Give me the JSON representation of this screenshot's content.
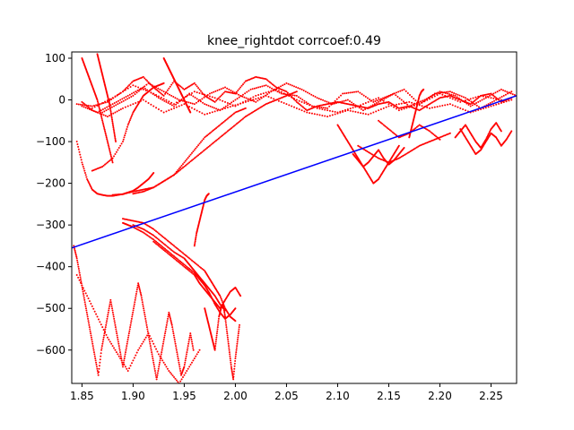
{
  "chart_data": {
    "type": "scatter",
    "title": "knee_rightdot corrcoef:0.49",
    "xlabel": "",
    "ylabel": "",
    "xlim": [
      1.84,
      2.275
    ],
    "ylim": [
      -680,
      115
    ],
    "xticks": [
      1.85,
      1.9,
      1.95,
      2.0,
      2.05,
      2.1,
      2.15,
      2.2,
      2.25
    ],
    "xtick_labels": [
      "1.85",
      "1.90",
      "1.95",
      "2.00",
      "2.05",
      "2.10",
      "2.15",
      "2.20",
      "2.25"
    ],
    "yticks": [
      100,
      0,
      -100,
      -200,
      -300,
      -400,
      -500,
      -600
    ],
    "ytick_labels": [
      "100",
      "0",
      "−100",
      "−200",
      "−300",
      "−400",
      "−500",
      "−600"
    ],
    "grid": false,
    "colors": {
      "points": "#ff0000",
      "fit_line": "#0000ff",
      "axes": "#000000"
    },
    "fit_line": {
      "x": [
        1.84,
        2.275
      ],
      "y": [
        -355,
        10
      ]
    },
    "traces": [
      {
        "x": [
          1.845,
          1.86,
          1.875,
          1.89,
          1.9,
          1.91,
          1.92,
          1.93,
          1.94,
          1.95,
          1.96,
          1.97,
          1.98,
          1.99,
          2.0,
          2.01,
          2.02,
          2.03,
          2.04,
          2.05,
          2.06,
          2.07,
          2.08,
          2.09,
          2.1,
          2.11,
          2.12,
          2.13,
          2.14,
          2.15,
          2.16,
          2.17,
          2.18,
          2.19,
          2.2,
          2.21,
          2.22,
          2.23,
          2.24,
          2.25,
          2.26,
          2.27
        ],
        "y": [
          -10,
          -15,
          -5,
          20,
          45,
          55,
          30,
          10,
          45,
          25,
          40,
          10,
          -5,
          20,
          15,
          45,
          55,
          50,
          30,
          20,
          -5,
          -25,
          -15,
          -10,
          -5,
          -10,
          -15,
          -20,
          -10,
          -5,
          -20,
          -15,
          -25,
          -10,
          5,
          10,
          0,
          -10,
          10,
          15,
          -5,
          5
        ]
      },
      {
        "x": [
          1.85,
          1.865,
          1.88,
          1.895,
          1.91,
          1.925,
          1.94,
          1.955,
          1.97,
          1.985,
          2.0,
          2.015,
          2.03,
          2.045,
          2.06,
          2.075,
          2.09,
          2.105,
          2.12,
          2.135,
          2.15,
          2.165,
          2.18,
          2.195,
          2.21,
          2.225,
          2.24,
          2.255,
          2.27
        ],
        "y": [
          -15,
          -30,
          -10,
          10,
          30,
          5,
          -15,
          15,
          -10,
          -25,
          0,
          25,
          35,
          15,
          10,
          -15,
          -20,
          15,
          20,
          -5,
          10,
          25,
          -10,
          15,
          20,
          5,
          -20,
          0,
          20
        ]
      },
      {
        "x": [
          1.86,
          1.88,
          1.9,
          1.92,
          1.94,
          1.96,
          1.98,
          2.0,
          2.02,
          2.04,
          2.06,
          2.08,
          2.1,
          2.12,
          2.14,
          2.16,
          2.18,
          2.2,
          2.22,
          2.24,
          2.26
        ],
        "y": [
          -20,
          5,
          35,
          15,
          -10,
          20,
          5,
          -15,
          10,
          25,
          0,
          -20,
          -30,
          -15,
          5,
          -25,
          -10,
          15,
          -5,
          10,
          0
        ]
      },
      {
        "x": [
          1.87,
          1.885,
          1.9,
          1.915,
          1.93,
          1.945,
          1.96,
          1.975,
          1.99,
          2.005,
          2.02,
          2.035,
          2.05,
          2.065,
          2.08,
          2.095,
          2.11,
          2.125,
          2.14,
          2.155,
          2.17,
          2.185,
          2.2,
          2.215,
          2.23,
          2.245,
          2.26,
          2.275
        ],
        "y": [
          -30,
          -10,
          10,
          40,
          20,
          0,
          -10,
          15,
          30,
          10,
          -5,
          20,
          40,
          25,
          5,
          -10,
          0,
          -25,
          -5,
          15,
          -15,
          0,
          20,
          10,
          -15,
          5,
          25,
          10
        ]
      },
      {
        "x": [
          1.85,
          1.86,
          1.875,
          1.89,
          1.91,
          1.93,
          1.95,
          1.97,
          1.99,
          2.01,
          2.03,
          2.05,
          2.07,
          2.09,
          2.11,
          2.13,
          2.15,
          2.17,
          2.19,
          2.21,
          2.23,
          2.25,
          2.27
        ],
        "y": [
          -5,
          -25,
          -40,
          -20,
          0,
          -30,
          -10,
          -35,
          -20,
          -5,
          10,
          -10,
          -30,
          -40,
          -25,
          -35,
          -15,
          -5,
          -20,
          -10,
          -30,
          -15,
          0
        ]
      },
      {
        "x": [
          1.845,
          1.85,
          1.855,
          1.86,
          1.865,
          1.87,
          1.875,
          1.88,
          1.885,
          1.89,
          1.895,
          1.9,
          1.905,
          1.91,
          1.915,
          1.92
        ],
        "y": [
          -100,
          -150,
          -190,
          -215,
          -225,
          -228,
          -230,
          -230,
          -228,
          -226,
          -222,
          -218,
          -210,
          -200,
          -190,
          -175
        ]
      },
      {
        "x": [
          1.88,
          1.89,
          1.9,
          1.91,
          1.92,
          1.93,
          1.94,
          1.95,
          1.96,
          1.97,
          1.98,
          1.99,
          2.0,
          2.01,
          2.02,
          2.03,
          2.04,
          2.05,
          2.06
        ],
        "y": [
          -228,
          -226,
          -220,
          -215,
          -210,
          -195,
          -180,
          -160,
          -140,
          -120,
          -100,
          -80,
          -60,
          -40,
          -25,
          -10,
          0,
          10,
          20
        ]
      },
      {
        "x": [
          1.9,
          1.91,
          1.92,
          1.93,
          1.94,
          1.95,
          1.96,
          1.97,
          1.98,
          1.99,
          2.0,
          2.01
        ],
        "y": [
          -225,
          -220,
          -210,
          -195,
          -180,
          -150,
          -120,
          -90,
          -70,
          -50,
          -30,
          -20
        ]
      },
      {
        "x": [
          1.86,
          1.87,
          1.88,
          1.89,
          1.895,
          1.9,
          1.905,
          1.91,
          1.915,
          1.92,
          1.925,
          1.93
        ],
        "y": [
          -170,
          -160,
          -140,
          -100,
          -60,
          -30,
          -10,
          10,
          20,
          30,
          35,
          40
        ]
      },
      {
        "x": [
          1.89,
          1.9,
          1.91,
          1.92,
          1.93,
          1.94,
          1.95,
          1.96,
          1.97,
          1.975,
          1.98,
          1.985,
          1.99,
          1.995,
          2.0
        ],
        "y": [
          -285,
          -290,
          -295,
          -310,
          -330,
          -350,
          -370,
          -390,
          -410,
          -430,
          -450,
          -470,
          -500,
          -520,
          -530
        ]
      },
      {
        "x": [
          1.89,
          1.895,
          1.9,
          1.91,
          1.92,
          1.93,
          1.94,
          1.95,
          1.96,
          1.965,
          1.97,
          1.975,
          1.98,
          1.985,
          1.99,
          1.995,
          2.0
        ],
        "y": [
          -295,
          -300,
          -305,
          -318,
          -335,
          -355,
          -375,
          -395,
          -415,
          -430,
          -445,
          -465,
          -490,
          -510,
          -525,
          -515,
          -500
        ]
      },
      {
        "x": [
          1.9,
          1.91,
          1.92,
          1.93,
          1.94,
          1.95,
          1.955,
          1.96,
          1.965,
          1.97,
          1.975,
          1.98,
          1.985,
          1.99
        ],
        "y": [
          -300,
          -310,
          -325,
          -345,
          -365,
          -380,
          -395,
          -410,
          -425,
          -440,
          -455,
          -470,
          -490,
          -505
        ]
      },
      {
        "x": [
          1.92,
          1.93,
          1.94,
          1.95,
          1.96,
          1.965,
          1.97,
          1.975,
          1.98,
          1.985,
          1.99,
          1.995,
          2.0,
          2.005
        ],
        "y": [
          -340,
          -360,
          -380,
          -400,
          -420,
          -440,
          -455,
          -470,
          -485,
          -500,
          -480,
          -460,
          -450,
          -470
        ]
      },
      {
        "x": [
          1.97,
          1.972,
          1.974,
          1.976,
          1.978,
          1.98,
          1.982,
          1.984,
          1.986,
          1.988,
          1.99,
          1.992,
          1.994,
          1.996,
          1.998,
          2.0,
          2.002,
          2.004
        ],
        "y": [
          -500,
          -520,
          -540,
          -560,
          -580,
          -600,
          -560,
          -520,
          -500,
          -490,
          -520,
          -560,
          -600,
          -640,
          -670,
          -620,
          -580,
          -540
        ]
      },
      {
        "x": [
          1.96,
          1.962,
          1.964,
          1.966,
          1.968,
          1.97,
          1.972,
          1.974
        ],
        "y": [
          -350,
          -320,
          -300,
          -280,
          -260,
          -240,
          -230,
          -225
        ]
      },
      {
        "x": [
          1.842,
          1.845,
          1.848,
          1.851,
          1.854,
          1.857,
          1.86,
          1.863,
          1.866,
          1.869,
          1.872,
          1.875,
          1.878,
          1.881,
          1.884,
          1.887,
          1.89,
          1.893,
          1.896,
          1.899,
          1.902,
          1.905,
          1.908,
          1.911,
          1.914,
          1.917,
          1.92,
          1.923,
          1.926,
          1.929,
          1.932,
          1.935,
          1.938,
          1.941,
          1.944,
          1.947,
          1.95,
          1.953,
          1.956,
          1.959
        ],
        "y": [
          -350,
          -380,
          -420,
          -460,
          -500,
          -540,
          -580,
          -620,
          -660,
          -600,
          -560,
          -520,
          -480,
          -520,
          -560,
          -600,
          -640,
          -600,
          -560,
          -520,
          -480,
          -440,
          -470,
          -510,
          -550,
          -590,
          -630,
          -670,
          -630,
          -590,
          -550,
          -510,
          -540,
          -580,
          -620,
          -660,
          -640,
          -600,
          -560,
          -600
        ]
      },
      {
        "x": [
          1.845,
          1.855,
          1.865,
          1.875,
          1.885,
          1.895,
          1.905,
          1.915,
          1.925,
          1.935,
          1.945,
          1.955,
          1.965
        ],
        "y": [
          -420,
          -470,
          -520,
          -570,
          -610,
          -650,
          -600,
          -560,
          -610,
          -650,
          -680,
          -640,
          -600
        ]
      },
      {
        "x": [
          1.85,
          1.853,
          1.856,
          1.859,
          1.862,
          1.865,
          1.868,
          1.871,
          1.874,
          1.877,
          1.88
        ],
        "y": [
          100,
          80,
          60,
          40,
          20,
          0,
          -30,
          -60,
          -90,
          -120,
          -150
        ]
      },
      {
        "x": [
          1.865,
          1.867,
          1.869,
          1.871,
          1.873,
          1.875,
          1.877,
          1.879,
          1.881,
          1.883
        ],
        "y": [
          110,
          90,
          70,
          50,
          30,
          10,
          -10,
          -40,
          -70,
          -100
        ]
      },
      {
        "x": [
          1.93,
          1.932,
          1.934,
          1.936,
          1.938,
          1.94,
          1.942,
          1.944,
          1.946,
          1.948,
          1.95,
          1.952,
          1.954,
          1.956
        ],
        "y": [
          100,
          90,
          80,
          70,
          60,
          50,
          40,
          30,
          20,
          10,
          0,
          -10,
          -20,
          -30
        ]
      },
      {
        "x": [
          2.1,
          2.105,
          2.11,
          2.115,
          2.12,
          2.125,
          2.13,
          2.135,
          2.14,
          2.145,
          2.15,
          2.155,
          2.16
        ],
        "y": [
          -60,
          -80,
          -100,
          -120,
          -140,
          -160,
          -180,
          -200,
          -190,
          -170,
          -150,
          -130,
          -110
        ]
      },
      {
        "x": [
          2.12,
          2.13,
          2.14,
          2.15,
          2.16,
          2.17,
          2.18,
          2.19,
          2.2,
          2.21
        ],
        "y": [
          -110,
          -125,
          -140,
          -150,
          -140,
          -125,
          -110,
          -100,
          -90,
          -80
        ]
      },
      {
        "x": [
          2.115,
          2.12,
          2.125,
          2.13,
          2.135,
          2.14,
          2.145,
          2.15,
          2.155,
          2.16,
          2.165
        ],
        "y": [
          -130,
          -145,
          -160,
          -150,
          -135,
          -120,
          -140,
          -155,
          -145,
          -130,
          -115
        ]
      },
      {
        "x": [
          2.22,
          2.225,
          2.23,
          2.235,
          2.24,
          2.245,
          2.25,
          2.255,
          2.26,
          2.265,
          2.27
        ],
        "y": [
          -70,
          -90,
          -110,
          -130,
          -120,
          -100,
          -80,
          -90,
          -110,
          -95,
          -75
        ]
      },
      {
        "x": [
          2.215,
          2.22,
          2.225,
          2.23,
          2.235,
          2.24,
          2.245,
          2.25,
          2.255,
          2.26
        ],
        "y": [
          -90,
          -75,
          -60,
          -80,
          -100,
          -115,
          -95,
          -70,
          -55,
          -75
        ]
      },
      {
        "x": [
          2.14,
          2.15,
          2.16,
          2.17,
          2.18,
          2.19,
          2.2
        ],
        "y": [
          -50,
          -70,
          -90,
          -80,
          -60,
          -75,
          -95
        ]
      },
      {
        "x": [
          2.17,
          2.172,
          2.174,
          2.176,
          2.178,
          2.18,
          2.182,
          2.184
        ],
        "y": [
          -90,
          -70,
          -50,
          -30,
          -10,
          10,
          20,
          25
        ]
      }
    ]
  }
}
